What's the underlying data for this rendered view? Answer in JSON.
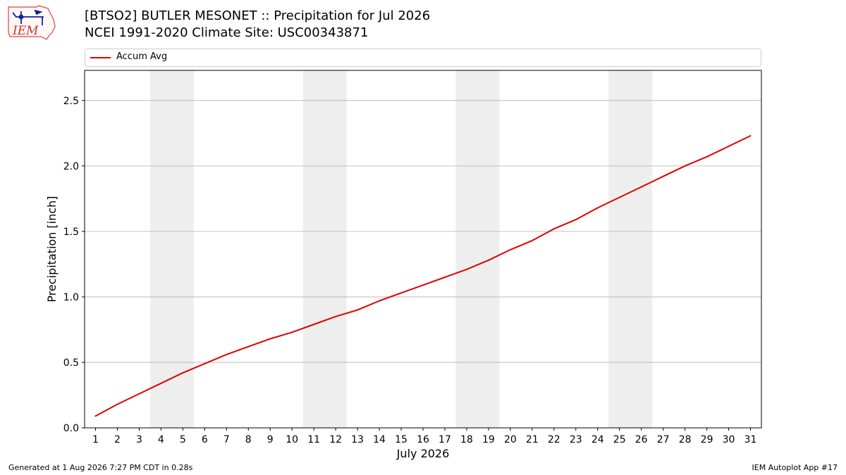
{
  "header": {
    "title_line1": "[BTSO2] BUTLER MESONET :: Precipitation for Jul 2026",
    "title_line2": "NCEI 1991-2020 Climate Site: USC00343871",
    "logo_text": "IEM"
  },
  "footer": {
    "left": "Generated at 1 Aug 2026 7:27 PM CDT in 0.28s",
    "right": "IEM Autoplot App #17"
  },
  "colors": {
    "series": "#e00000",
    "weekend_band": "#eeeeee",
    "grid": "#b0b0b0"
  },
  "chart_data": {
    "type": "line",
    "xlabel": "July 2026",
    "ylabel": "Precipitation [inch]",
    "ylim": [
      0,
      2.73
    ],
    "xlim": [
      0.5,
      31.5
    ],
    "yticks": [
      0.0,
      0.5,
      1.0,
      1.5,
      2.0,
      2.5
    ],
    "ytick_labels": [
      "0.0",
      "0.5",
      "1.0",
      "1.5",
      "2.0",
      "2.5"
    ],
    "x": [
      1,
      2,
      3,
      4,
      5,
      6,
      7,
      8,
      9,
      10,
      11,
      12,
      13,
      14,
      15,
      16,
      17,
      18,
      19,
      20,
      21,
      22,
      23,
      24,
      25,
      26,
      27,
      28,
      29,
      30,
      31
    ],
    "xtick_labels": [
      "1",
      "2",
      "3",
      "4",
      "5",
      "6",
      "7",
      "8",
      "9",
      "10",
      "11",
      "12",
      "13",
      "14",
      "15",
      "16",
      "17",
      "18",
      "19",
      "20",
      "21",
      "22",
      "23",
      "24",
      "25",
      "26",
      "27",
      "28",
      "29",
      "30",
      "31"
    ],
    "series": [
      {
        "name": "Accum Avg",
        "values": [
          0.09,
          0.18,
          0.26,
          0.34,
          0.42,
          0.49,
          0.56,
          0.62,
          0.68,
          0.73,
          0.79,
          0.85,
          0.9,
          0.97,
          1.03,
          1.09,
          1.15,
          1.21,
          1.28,
          1.36,
          1.43,
          1.52,
          1.59,
          1.68,
          1.76,
          1.84,
          1.92,
          2.0,
          2.07,
          2.15,
          2.23
        ]
      }
    ],
    "weekend_spans": [
      [
        3.5,
        5.5
      ],
      [
        10.5,
        12.5
      ],
      [
        17.5,
        19.5
      ],
      [
        24.5,
        26.5
      ]
    ],
    "legend_position": "top",
    "grid": "horizontal"
  }
}
